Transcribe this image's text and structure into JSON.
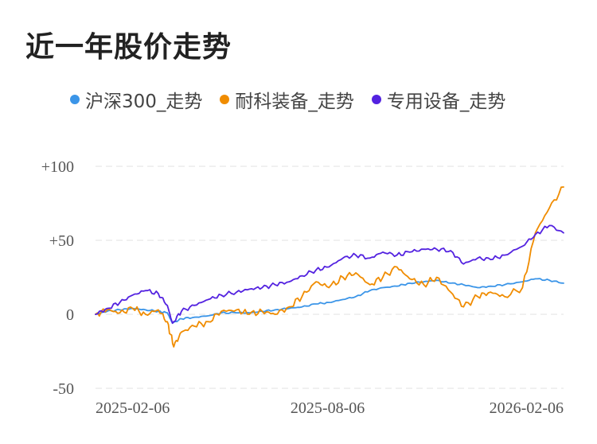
{
  "chart_data": {
    "type": "line",
    "title": "近一年股价走势",
    "y_ticks": [
      "+100",
      "+50",
      "0",
      "-50"
    ],
    "y_tick_values": [
      100,
      50,
      0,
      -50
    ],
    "ylim": [
      -50,
      100
    ],
    "x_ticks": [
      "2025-02-06",
      "2025-08-06",
      "2026-02-06"
    ],
    "x_range": [
      "2025-02-06",
      "2026-02-06"
    ],
    "grid": true,
    "legend_placement": "top-left",
    "series": [
      {
        "name": "沪深300_走势",
        "color": "#3b95e8",
        "points": [
          [
            "2025-02-06",
            0
          ],
          [
            "2025-02-15",
            2
          ],
          [
            "2025-02-25",
            3
          ],
          [
            "2025-03-07",
            4
          ],
          [
            "2025-03-17",
            3
          ],
          [
            "2025-03-27",
            2
          ],
          [
            "2025-04-03",
            1
          ],
          [
            "2025-04-07",
            -6
          ],
          [
            "2025-04-14",
            -3
          ],
          [
            "2025-04-24",
            -2
          ],
          [
            "2025-05-05",
            -1
          ],
          [
            "2025-05-15",
            1
          ],
          [
            "2025-05-27",
            1
          ],
          [
            "2025-06-06",
            1
          ],
          [
            "2025-06-16",
            2
          ],
          [
            "2025-06-26",
            3
          ],
          [
            "2025-07-07",
            4
          ],
          [
            "2025-07-17",
            5
          ],
          [
            "2025-07-28",
            7
          ],
          [
            "2025-08-07",
            8
          ],
          [
            "2025-08-18",
            10
          ],
          [
            "2025-08-28",
            12
          ],
          [
            "2025-09-08",
            16
          ],
          [
            "2025-09-18",
            18
          ],
          [
            "2025-09-29",
            19
          ],
          [
            "2025-10-09",
            21
          ],
          [
            "2025-10-20",
            22
          ],
          [
            "2025-10-30",
            23
          ],
          [
            "2025-11-10",
            21
          ],
          [
            "2025-11-20",
            20
          ],
          [
            "2025-12-01",
            18
          ],
          [
            "2025-12-11",
            19
          ],
          [
            "2025-12-22",
            20
          ],
          [
            "2026-01-05",
            22
          ],
          [
            "2026-01-15",
            24
          ],
          [
            "2026-01-26",
            23
          ],
          [
            "2026-02-06",
            21
          ]
        ]
      },
      {
        "name": "耐科装备_走势",
        "color": "#f08c00",
        "points": [
          [
            "2025-02-06",
            0
          ],
          [
            "2025-02-15",
            3
          ],
          [
            "2025-02-25",
            1
          ],
          [
            "2025-03-07",
            4
          ],
          [
            "2025-03-17",
            0
          ],
          [
            "2025-03-27",
            3
          ],
          [
            "2025-04-03",
            -5
          ],
          [
            "2025-04-08",
            -22
          ],
          [
            "2025-04-14",
            -12
          ],
          [
            "2025-04-24",
            -8
          ],
          [
            "2025-05-05",
            -5
          ],
          [
            "2025-05-15",
            2
          ],
          [
            "2025-05-27",
            3
          ],
          [
            "2025-06-06",
            0
          ],
          [
            "2025-06-16",
            2
          ],
          [
            "2025-06-26",
            0
          ],
          [
            "2025-07-07",
            5
          ],
          [
            "2025-07-17",
            12
          ],
          [
            "2025-07-28",
            22
          ],
          [
            "2025-08-07",
            18
          ],
          [
            "2025-08-18",
            25
          ],
          [
            "2025-08-28",
            28
          ],
          [
            "2025-09-08",
            20
          ],
          [
            "2025-09-18",
            25
          ],
          [
            "2025-09-29",
            32
          ],
          [
            "2025-10-09",
            24
          ],
          [
            "2025-10-20",
            20
          ],
          [
            "2025-10-30",
            25
          ],
          [
            "2025-11-10",
            15
          ],
          [
            "2025-11-20",
            5
          ],
          [
            "2025-12-01",
            12
          ],
          [
            "2025-12-11",
            15
          ],
          [
            "2025-12-22",
            12
          ],
          [
            "2026-01-05",
            18
          ],
          [
            "2026-01-15",
            55
          ],
          [
            "2026-01-26",
            72
          ],
          [
            "2026-02-06",
            86
          ]
        ]
      },
      {
        "name": "专用设备_走势",
        "color": "#5322e0",
        "points": [
          [
            "2025-02-06",
            0
          ],
          [
            "2025-02-15",
            4
          ],
          [
            "2025-02-25",
            8
          ],
          [
            "2025-03-07",
            13
          ],
          [
            "2025-03-17",
            16
          ],
          [
            "2025-03-27",
            14
          ],
          [
            "2025-04-03",
            6
          ],
          [
            "2025-04-07",
            -6
          ],
          [
            "2025-04-14",
            2
          ],
          [
            "2025-04-24",
            6
          ],
          [
            "2025-05-05",
            10
          ],
          [
            "2025-05-15",
            13
          ],
          [
            "2025-05-27",
            15
          ],
          [
            "2025-06-06",
            17
          ],
          [
            "2025-06-16",
            18
          ],
          [
            "2025-06-26",
            20
          ],
          [
            "2025-07-07",
            22
          ],
          [
            "2025-07-17",
            26
          ],
          [
            "2025-07-28",
            30
          ],
          [
            "2025-08-07",
            32
          ],
          [
            "2025-08-18",
            38
          ],
          [
            "2025-08-28",
            40
          ],
          [
            "2025-09-08",
            38
          ],
          [
            "2025-09-18",
            42
          ],
          [
            "2025-09-29",
            40
          ],
          [
            "2025-10-09",
            42
          ],
          [
            "2025-10-20",
            44
          ],
          [
            "2025-10-30",
            44
          ],
          [
            "2025-11-10",
            43
          ],
          [
            "2025-11-20",
            34
          ],
          [
            "2025-12-01",
            38
          ],
          [
            "2025-12-11",
            37
          ],
          [
            "2025-12-22",
            40
          ],
          [
            "2026-01-05",
            46
          ],
          [
            "2026-01-15",
            54
          ],
          [
            "2026-01-26",
            60
          ],
          [
            "2026-02-06",
            55
          ]
        ]
      }
    ]
  }
}
